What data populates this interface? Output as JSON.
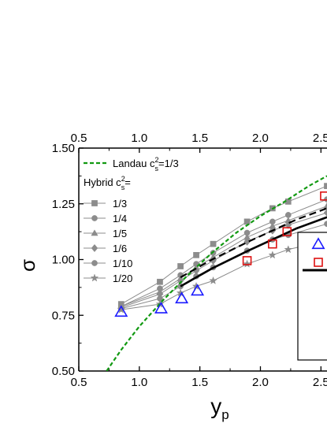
{
  "chart_data": {
    "type": "line",
    "xlabel": "y",
    "xlabel_sub": "p",
    "ylabel": "σ",
    "xlim": [
      0.5,
      2.55
    ],
    "ylim": [
      0.5,
      1.5
    ],
    "x_ticks": [
      "0.5",
      "1.0",
      "1.5",
      "2.0",
      "2.5"
    ],
    "x_tick_values": [
      0.5,
      1.0,
      1.5,
      2.0,
      2.5
    ],
    "top_x_ticks": [
      "0.5",
      "1.0",
      "1.5",
      "2.0",
      "2.5"
    ],
    "y_ticks": [
      "0.50",
      "0.75",
      "1.00",
      "1.25",
      "1.50"
    ],
    "y_tick_values": [
      0.5,
      0.75,
      1.0,
      1.25,
      1.5
    ],
    "legend": {
      "landau_label": "Landau c",
      "landau_sup": "2",
      "landau_sub": "s",
      "landau_tail": "=1/3",
      "hybrid_label": "Hybrid c",
      "hybrid_sup": "2",
      "hybrid_sub": "s",
      "hybrid_tail": "="
    },
    "landau_curve": {
      "color": "#119911",
      "x": [
        0.73,
        0.85,
        1.0,
        1.2,
        1.4,
        1.6,
        1.8,
        2.0,
        2.2,
        2.4,
        2.55
      ],
      "y": [
        0.5,
        0.595,
        0.7,
        0.82,
        0.93,
        1.03,
        1.12,
        1.195,
        1.26,
        1.33,
        1.375
      ]
    },
    "hybrid_series": [
      {
        "name": "1/3",
        "marker": "square",
        "color": "#8c8c8c",
        "x": [
          0.85,
          1.17,
          1.34,
          1.47,
          1.61,
          1.89,
          2.1,
          2.23,
          2.55
        ],
        "y": [
          0.8,
          0.9,
          0.97,
          1.02,
          1.07,
          1.17,
          1.23,
          1.26,
          1.33
        ]
      },
      {
        "name": "1/4",
        "marker": "circle",
        "color": "#8c8c8c",
        "x": [
          0.85,
          1.17,
          1.34,
          1.47,
          1.61,
          1.89,
          2.1,
          2.23,
          2.55
        ],
        "y": [
          0.79,
          0.87,
          0.93,
          0.98,
          1.03,
          1.12,
          1.17,
          1.2,
          1.27
        ]
      },
      {
        "name": "1/5",
        "marker": "triangle",
        "color": "#8c8c8c",
        "x": [
          0.85,
          1.17,
          1.34,
          1.47,
          1.61,
          1.89,
          2.1,
          2.23,
          2.55
        ],
        "y": [
          0.79,
          0.855,
          0.915,
          0.965,
          1.01,
          1.1,
          1.15,
          1.175,
          1.24
        ]
      },
      {
        "name": "1/6",
        "marker": "diamond",
        "color": "#8c8c8c",
        "x": [
          0.85,
          1.17,
          1.34,
          1.47,
          1.61,
          1.89,
          2.1,
          2.23,
          2.55
        ],
        "y": [
          0.785,
          0.845,
          0.905,
          0.95,
          0.995,
          1.08,
          1.13,
          1.155,
          1.21
        ]
      },
      {
        "name": "1/10",
        "marker": "circle",
        "color": "#8c8c8c",
        "x": [
          0.85,
          1.17,
          1.34,
          1.47,
          1.61,
          1.89,
          2.1,
          2.23,
          2.55
        ],
        "y": [
          0.78,
          0.825,
          0.88,
          0.925,
          0.965,
          1.04,
          1.09,
          1.11,
          1.16
        ]
      },
      {
        "name": "1/20",
        "marker": "star",
        "color": "#8c8c8c",
        "x": [
          0.85,
          1.17,
          1.34,
          1.47,
          1.61,
          1.89,
          2.1,
          2.23,
          2.55
        ],
        "y": [
          0.775,
          0.8,
          0.85,
          0.88,
          0.905,
          0.98,
          1.02,
          1.045,
          1.085
        ]
      }
    ],
    "black_dashed": {
      "color": "#000000",
      "x": [
        1.34,
        1.6,
        1.9,
        2.1,
        2.3,
        2.55
      ],
      "y": [
        0.92,
        1.0,
        1.08,
        1.13,
        1.18,
        1.23
      ]
    },
    "black_solid": {
      "color": "#000000",
      "x": [
        1.34,
        1.6,
        1.9,
        2.1,
        2.3,
        2.55
      ],
      "y": [
        0.88,
        0.96,
        1.04,
        1.09,
        1.14,
        1.19
      ]
    },
    "blue_triangles": {
      "color": "#1a1aff",
      "x": [
        0.85,
        1.18,
        1.35,
        1.48
      ],
      "y": [
        0.765,
        0.78,
        0.825,
        0.86
      ]
    },
    "red_squares": {
      "color": "#dd1111",
      "x": [
        1.89,
        2.1,
        2.22,
        2.53
      ],
      "y": [
        0.995,
        1.07,
        1.125,
        1.285
      ]
    },
    "inset_legend": {
      "blue_color": "#1a1aff",
      "red_color": "#dd1111"
    }
  }
}
